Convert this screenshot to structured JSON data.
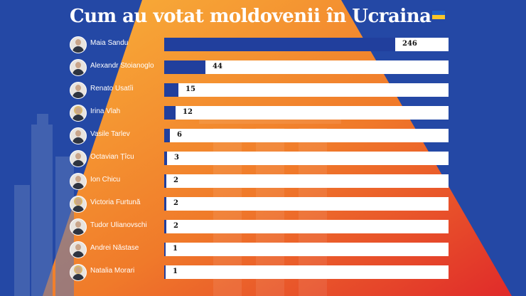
{
  "title": "Cum au votat moldovenii în Ucraina",
  "colors": {
    "background": "#2448a5",
    "bar": "#213f9d",
    "track": "#ffffff",
    "flag_blue": "#1f5fc4",
    "flag_yellow": "#f7c72a"
  },
  "chart_data": {
    "type": "bar",
    "orientation": "horizontal",
    "title": "Cum au votat moldovenii în Ucraina",
    "categories": [
      "Maia Sandu",
      "Alexandr Stoianoglo",
      "Renato Usatîi",
      "Irina Vlah",
      "Vasile Tarlev",
      "Octavian Țîcu",
      "Ion Chicu",
      "Victoria Furtună",
      "Tudor Ulianovschi",
      "Andrei Năstase",
      "Natalia Morari"
    ],
    "values": [
      246,
      44,
      15,
      12,
      6,
      3,
      2,
      2,
      2,
      1,
      1
    ],
    "xlim": [
      0,
      246
    ],
    "grid": false,
    "data_labels": true
  }
}
